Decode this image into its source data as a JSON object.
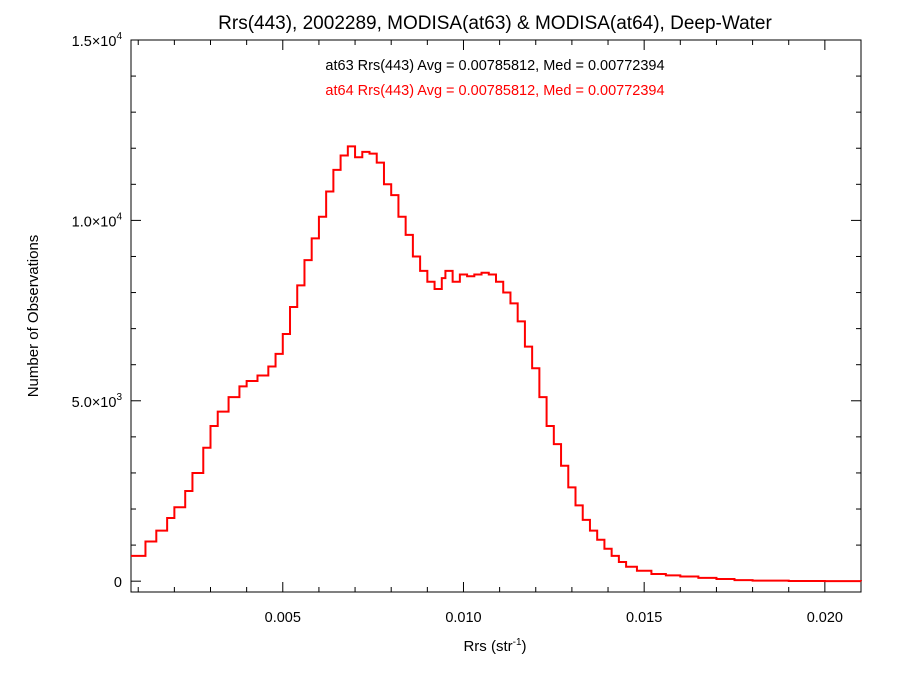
{
  "chart_data": {
    "type": "line",
    "step": true,
    "title": "Rrs(443), 2002289, MODISA(at63) & MODISA(at64), Deep-Water",
    "xlabel_main": "Rrs (str",
    "xlabel_sup": "-1",
    "xlabel_close": ")",
    "ylabel": "Number of Observations",
    "xlim": [
      0.0008,
      0.021
    ],
    "ylim": [
      -300,
      15000
    ],
    "x_ticks": [
      {
        "value": 0.005,
        "label": "0.005"
      },
      {
        "value": 0.01,
        "label": "0.010"
      },
      {
        "value": 0.015,
        "label": "0.015"
      },
      {
        "value": 0.02,
        "label": "0.020"
      }
    ],
    "y_ticks": [
      {
        "value": 0,
        "base": "0",
        "exp": ""
      },
      {
        "value": 5000,
        "base": "5.0×10",
        "exp": "3"
      },
      {
        "value": 10000,
        "base": "1.0×10",
        "exp": "4"
      },
      {
        "value": 15000,
        "base": "1.5×10",
        "exp": "4"
      }
    ],
    "annotations": [
      {
        "text": "at63 Rrs(443) Avg = 0.00785812, Med = 0.00772394",
        "color": "#000000"
      },
      {
        "text": "at64 Rrs(443) Avg = 0.00785812, Med = 0.00772394",
        "color": "#ff0000"
      }
    ],
    "grid": false,
    "series": [
      {
        "color": "#ff0000",
        "points": [
          [
            0.0008,
            700
          ],
          [
            0.0012,
            1100
          ],
          [
            0.0015,
            1400
          ],
          [
            0.0018,
            1750
          ],
          [
            0.002,
            2050
          ],
          [
            0.0023,
            2500
          ],
          [
            0.0025,
            3000
          ],
          [
            0.0028,
            3700
          ],
          [
            0.003,
            4300
          ],
          [
            0.0032,
            4700
          ],
          [
            0.0035,
            5100
          ],
          [
            0.0038,
            5400
          ],
          [
            0.004,
            5550
          ],
          [
            0.0043,
            5700
          ],
          [
            0.0046,
            5950
          ],
          [
            0.0048,
            6300
          ],
          [
            0.005,
            6850
          ],
          [
            0.0052,
            7600
          ],
          [
            0.0054,
            8200
          ],
          [
            0.0056,
            8900
          ],
          [
            0.0058,
            9500
          ],
          [
            0.006,
            10100
          ],
          [
            0.0062,
            10800
          ],
          [
            0.0064,
            11400
          ],
          [
            0.0066,
            11800
          ],
          [
            0.0068,
            12050
          ],
          [
            0.007,
            11750
          ],
          [
            0.0072,
            11900
          ],
          [
            0.0074,
            11850
          ],
          [
            0.0076,
            11600
          ],
          [
            0.0078,
            11000
          ],
          [
            0.008,
            10700
          ],
          [
            0.0082,
            10100
          ],
          [
            0.0084,
            9600
          ],
          [
            0.0086,
            9000
          ],
          [
            0.0088,
            8600
          ],
          [
            0.009,
            8300
          ],
          [
            0.0092,
            8100
          ],
          [
            0.0094,
            8400
          ],
          [
            0.0095,
            8600
          ],
          [
            0.0097,
            8300
          ],
          [
            0.0099,
            8500
          ],
          [
            0.0101,
            8450
          ],
          [
            0.0103,
            8500
          ],
          [
            0.0105,
            8550
          ],
          [
            0.0107,
            8500
          ],
          [
            0.0109,
            8300
          ],
          [
            0.0111,
            8000
          ],
          [
            0.0113,
            7700
          ],
          [
            0.0115,
            7200
          ],
          [
            0.0117,
            6500
          ],
          [
            0.0119,
            5900
          ],
          [
            0.0121,
            5100
          ],
          [
            0.0123,
            4300
          ],
          [
            0.0125,
            3800
          ],
          [
            0.0127,
            3200
          ],
          [
            0.0129,
            2600
          ],
          [
            0.0131,
            2100
          ],
          [
            0.0133,
            1700
          ],
          [
            0.0135,
            1400
          ],
          [
            0.0137,
            1150
          ],
          [
            0.0139,
            900
          ],
          [
            0.0141,
            700
          ],
          [
            0.0143,
            530
          ],
          [
            0.0145,
            400
          ],
          [
            0.0148,
            290
          ],
          [
            0.0152,
            200
          ],
          [
            0.0156,
            160
          ],
          [
            0.016,
            130
          ],
          [
            0.0165,
            90
          ],
          [
            0.017,
            60
          ],
          [
            0.0175,
            30
          ],
          [
            0.018,
            15
          ],
          [
            0.019,
            5
          ],
          [
            0.02,
            2
          ],
          [
            0.021,
            0
          ]
        ]
      }
    ]
  }
}
